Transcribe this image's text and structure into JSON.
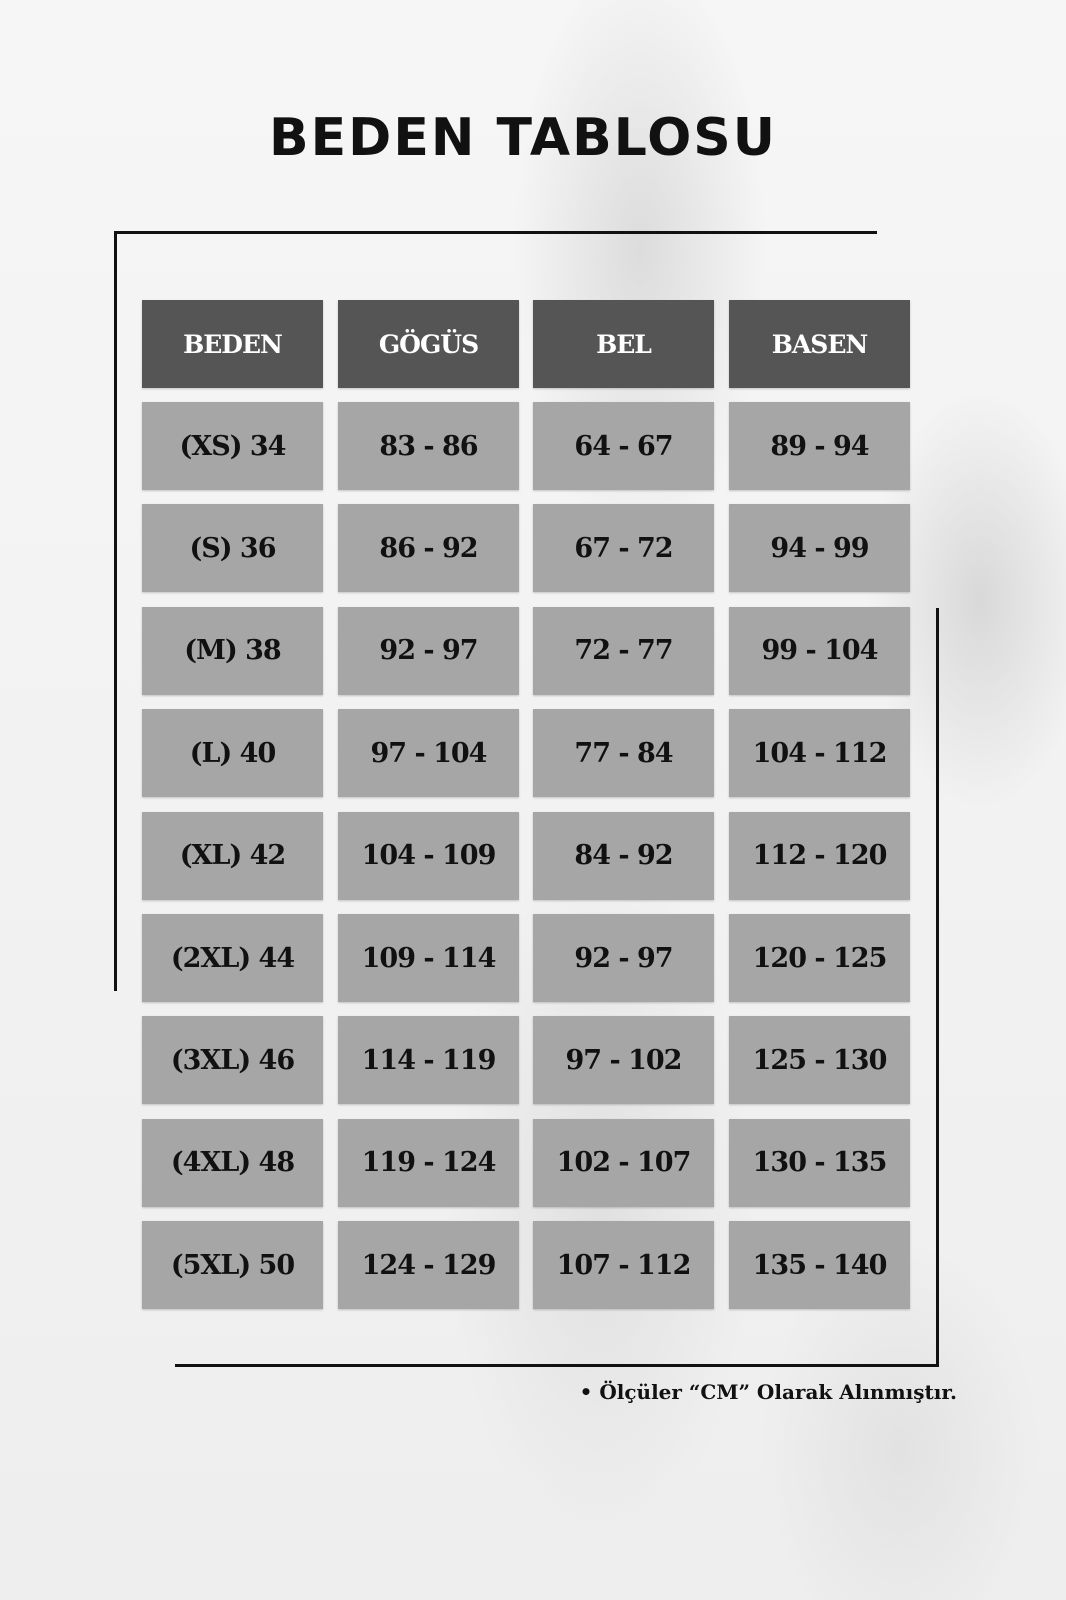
{
  "title": "BEDEN TABLOSU",
  "table": {
    "headers": [
      "BEDEN",
      "GÖGÜS",
      "BEL",
      "BASEN"
    ],
    "rows": [
      [
        "(XS) 34",
        "83 - 86",
        "64 - 67",
        "89 - 94"
      ],
      [
        "(S) 36",
        "86 - 92",
        "67 - 72",
        "94 - 99"
      ],
      [
        "(M) 38",
        "92 - 97",
        "72 - 77",
        "99 - 104"
      ],
      [
        "(L) 40",
        "97 - 104",
        "77 - 84",
        "104 - 112"
      ],
      [
        "(XL) 42",
        "104 - 109",
        "84 - 92",
        "112 - 120"
      ],
      [
        "(2XL) 44",
        "109 - 114",
        "92 - 97",
        "120 - 125"
      ],
      [
        "(3XL) 46",
        "114 - 119",
        "97 - 102",
        "125 - 130"
      ],
      [
        "(4XL) 48",
        "119 - 124",
        "102 - 107",
        "130 - 135"
      ],
      [
        "(5XL) 50",
        "124 - 129",
        "107 - 112",
        "135 - 140"
      ]
    ]
  },
  "note": "• Ölçüler “CM” Olarak Alınmıştır.",
  "colors": {
    "header_bg": "#555555",
    "cell_bg": "#a6a6a6",
    "text": "#111111"
  }
}
